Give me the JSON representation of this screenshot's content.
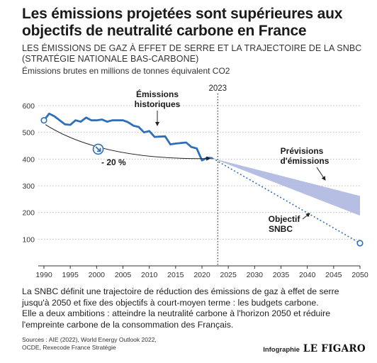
{
  "header": {
    "title": "Les émissions projetées sont supérieures aux objectifs de neutralité carbone en France",
    "subtitle": "LES ÉMISSIONS DE GAZ À EFFET DE SERRE ET LA TRAJECTOIRE DE LA SNBC (STRATÉGIE NATIONALE BAS-CARBONE)",
    "unit": "Émissions brutes en millions de tonnes équivalent CO2"
  },
  "chart_data": {
    "type": "line",
    "xlim": [
      1990,
      2050
    ],
    "ylim": [
      0,
      600
    ],
    "x_ticks": [
      1990,
      1995,
      2000,
      2005,
      2010,
      2015,
      2020,
      2025,
      2030,
      2035,
      2040,
      2045,
      2050
    ],
    "y_ticks": [
      100,
      200,
      300,
      400,
      500,
      600
    ],
    "grid": "horizontal dotted",
    "marker_year": {
      "x": 2023,
      "label": "2023"
    },
    "series": [
      {
        "name": "Émissions historiques",
        "style": "solid",
        "color": "#2f6eba",
        "x": [
          1990,
          1991,
          1992,
          1993,
          1994,
          1995,
          1996,
          1997,
          1998,
          1999,
          2000,
          2001,
          2002,
          2003,
          2004,
          2005,
          2006,
          2007,
          2008,
          2009,
          2010,
          2011,
          2012,
          2013,
          2014,
          2015,
          2016,
          2017,
          2018,
          2019,
          2020,
          2021,
          2022
        ],
        "y": [
          545,
          570,
          560,
          545,
          530,
          528,
          545,
          540,
          555,
          545,
          545,
          548,
          540,
          545,
          545,
          545,
          538,
          525,
          520,
          500,
          505,
          483,
          484,
          485,
          455,
          458,
          460,
          462,
          445,
          440,
          395,
          405,
          403
        ]
      },
      {
        "name": "Objectif SNBC",
        "style": "dotted",
        "color": "#2f6eba",
        "x": [
          2022,
          2050
        ],
        "y": [
          403,
          85
        ]
      },
      {
        "name": "Prévisions d'émissions",
        "type": "area-band",
        "color": "#a9b4de",
        "x": [
          2022,
          2050
        ],
        "upper": [
          403,
          262
        ],
        "lower": [
          403,
          188
        ]
      }
    ],
    "reference_point": {
      "x": 1990,
      "y": 545
    },
    "annotations": [
      {
        "text": "Émissions historiques",
        "x": 2006,
        "y": 570
      },
      {
        "text": "- 20 %",
        "x": 2001,
        "y": 395
      },
      {
        "text": "Prévisions d'émissions",
        "x": 2041,
        "y": 445
      },
      {
        "text": "Objectif SNBC",
        "x": 2038,
        "y": 250
      }
    ]
  },
  "chart_labels": {
    "historic_1": "Émissions",
    "historic_2": "historiques",
    "reduction": "- 20 %",
    "forecast_1": "Prévisions",
    "forecast_2": "d'émissions",
    "target_1": "Objectif",
    "target_2": "SNBC",
    "year_marker": "2023"
  },
  "description": [
    "La SNBC définit une trajectoire de réduction des émissions de gaz à effet de serre jusqu'à 2050 et fixe des objectifs à court-moyen terme : les budgets carbone.",
    "Elle a deux ambitions : atteindre la neutralité carbone à l'horizon 2050 et réduire l'empreinte carbone de la consommation des Français."
  ],
  "sources": {
    "line1": "Sources : AIE (2022), World Energy Outlook 2022,",
    "line2": "OCDE, Rexecode France Stratégie"
  },
  "credit": {
    "label": "Infographie",
    "brand": "LE FIGARO"
  },
  "colors": {
    "line": "#2f6eba",
    "band": "#a9b4de",
    "grid": "#bdbdbd",
    "axis": "#333333"
  }
}
